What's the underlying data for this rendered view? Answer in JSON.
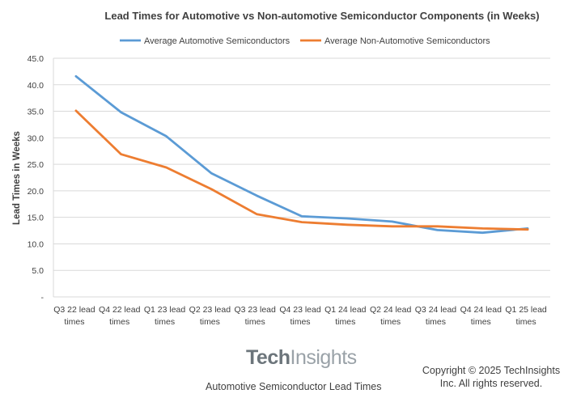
{
  "chart_data": {
    "type": "line",
    "title": "Lead Times for Automotive vs Non-automotive Semiconductor Components (in Weeks)",
    "ylabel": "Lead Times in Weeks",
    "xlabel": "",
    "ylim": [
      0,
      45
    ],
    "y_ticks": [
      "-",
      "5.0",
      "10.0",
      "15.0",
      "20.0",
      "25.0",
      "30.0",
      "35.0",
      "40.0",
      "45.0"
    ],
    "grid": true,
    "legend_position": "top",
    "categories": [
      [
        "Q3 22 lead",
        "times"
      ],
      [
        "Q4 22 lead",
        "times"
      ],
      [
        "Q1 23 lead",
        "times"
      ],
      [
        "Q2 23 lead",
        "times"
      ],
      [
        "Q3 23 lead",
        "times"
      ],
      [
        "Q4 23 lead",
        "times"
      ],
      [
        "Q1 24 lead",
        "times"
      ],
      [
        "Q2 24 lead",
        "times"
      ],
      [
        "Q3 24 lead",
        "times"
      ],
      [
        "Q4 24 lead",
        "times"
      ],
      [
        "Q1 25 lead",
        "times"
      ]
    ],
    "series": [
      {
        "name": "Average Automotive Semiconductors",
        "color": "#5b9bd5",
        "values": [
          41.6,
          34.8,
          30.3,
          23.3,
          19.1,
          15.2,
          14.8,
          14.2,
          12.6,
          12.1,
          12.9
        ]
      },
      {
        "name": "Average Non-Automotive Semiconductors",
        "color": "#ed7d31",
        "values": [
          35.1,
          26.9,
          24.4,
          20.3,
          15.6,
          14.1,
          13.6,
          13.3,
          13.3,
          12.9,
          12.7
        ]
      }
    ]
  },
  "footer": {
    "logo_tech": "Tech",
    "logo_insights": "Insights",
    "caption": "Automotive Semiconductor Lead Times",
    "copyright_line1": "Copyright © 2025 TechInsights",
    "copyright_line2": "Inc.  All rights reserved."
  }
}
